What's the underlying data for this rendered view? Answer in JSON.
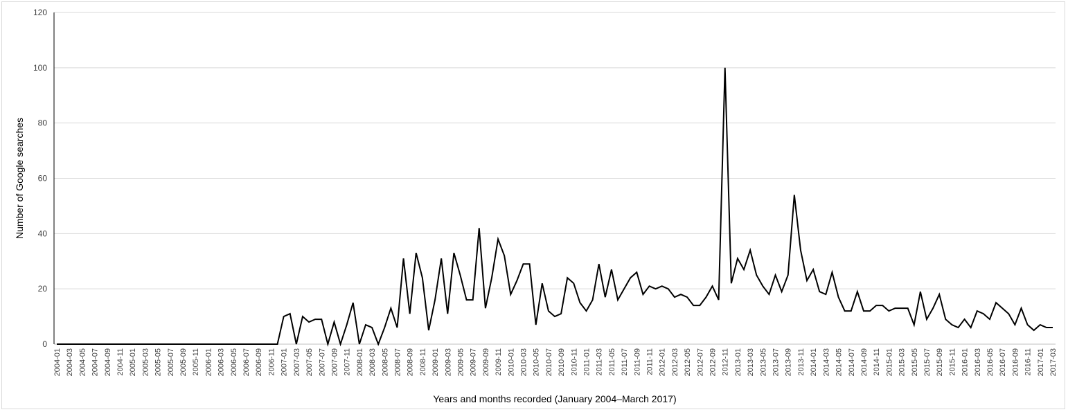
{
  "chart_data": {
    "type": "line",
    "title": "",
    "xlabel": "Years and months recorded (January 2004–March 2017)",
    "ylabel": "Number of Google searches",
    "ylim": [
      0,
      120
    ],
    "yticks": [
      0,
      20,
      40,
      60,
      80,
      100,
      120
    ],
    "grid": true,
    "legend": "none",
    "line_color": "#000000",
    "grid_color": "#d9d9d9",
    "start": "2004-01",
    "end": "2017-03",
    "xtick_labels": [
      "2004-01",
      "2004-03",
      "2004-05",
      "2004-07",
      "2004-09",
      "2004-11",
      "2005-01",
      "2005-03",
      "2005-05",
      "2005-07",
      "2005-09",
      "2005-11",
      "2006-01",
      "2006-03",
      "2006-05",
      "2006-07",
      "2006-09",
      "2006-11",
      "2007-01",
      "2007-03",
      "2007-05",
      "2007-07",
      "2007-09",
      "2007-11",
      "2008-01",
      "2008-03",
      "2008-05",
      "2008-07",
      "2008-09",
      "2008-11",
      "2009-01",
      "2009-03",
      "2009-05",
      "2009-07",
      "2009-09",
      "2009-11",
      "2010-01",
      "2010-03",
      "2010-05",
      "2010-07",
      "2010-09",
      "2010-11",
      "2011-01",
      "2011-03",
      "2011-05",
      "2011-07",
      "2011-09",
      "2011-11",
      "2012-01",
      "2012-03",
      "2012-05",
      "2012-07",
      "2012-09",
      "2012-11",
      "2013-01",
      "2013-03",
      "2013-05",
      "2013-07",
      "2013-09",
      "2013-11",
      "2014-01",
      "2014-03",
      "2014-05",
      "2014-07",
      "2014-09",
      "2014-11",
      "2015-01",
      "2015-03",
      "2015-05",
      "2015-07",
      "2015-09",
      "2015-11",
      "2016-01",
      "2016-03",
      "2016-05",
      "2016-07",
      "2016-09",
      "2016-11",
      "2017-01",
      "2017-03"
    ],
    "series": [
      {
        "values": [
          0,
          0,
          0,
          0,
          0,
          0,
          0,
          0,
          0,
          0,
          0,
          0,
          0,
          0,
          0,
          0,
          0,
          0,
          0,
          0,
          0,
          0,
          0,
          0,
          0,
          0,
          0,
          0,
          0,
          0,
          0,
          0,
          0,
          0,
          0,
          0,
          10,
          11,
          0,
          10,
          8,
          9,
          9,
          0,
          8,
          0,
          7,
          15,
          0,
          7,
          6,
          0,
          6,
          13,
          6,
          31,
          11,
          33,
          24,
          5,
          16,
          31,
          11,
          33,
          25,
          16,
          16,
          42,
          13,
          24,
          38,
          32,
          18,
          23,
          29,
          29,
          7,
          22,
          12,
          10,
          11,
          24,
          22,
          15,
          12,
          16,
          29,
          17,
          27,
          16,
          20,
          24,
          26,
          18,
          21,
          20,
          21,
          20,
          17,
          18,
          17,
          14,
          14,
          17,
          21,
          16,
          100,
          22,
          31,
          27,
          34,
          25,
          21,
          18,
          25,
          19,
          25,
          54,
          34,
          23,
          27,
          19,
          18,
          26,
          17,
          12,
          12,
          19,
          12,
          12,
          14,
          14,
          12,
          13,
          13,
          13,
          7,
          19,
          9,
          13,
          18,
          9,
          7,
          6,
          9,
          6,
          12,
          11,
          9,
          15,
          13,
          11,
          7,
          13,
          7,
          5,
          7,
          6,
          6
        ]
      }
    ]
  }
}
